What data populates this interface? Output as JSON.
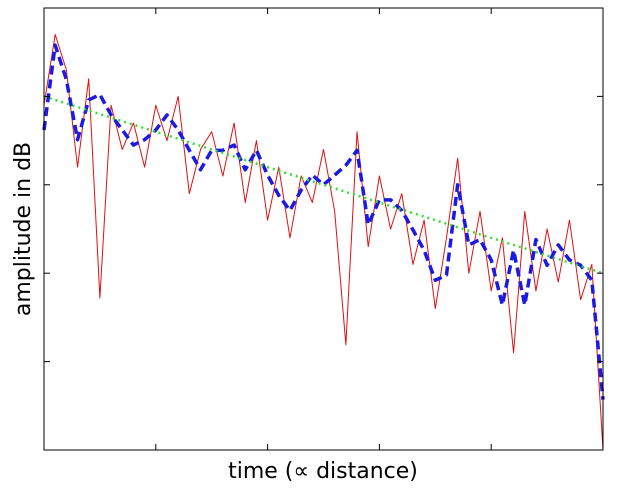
{
  "chart_data": {
    "type": "line",
    "xlabel": "time (∝ distance)",
    "ylabel": "amplitude in dB",
    "x": [
      0,
      0.1,
      0.2,
      0.3,
      0.4,
      0.5,
      0.6,
      0.7,
      0.8,
      0.9,
      1,
      1.1,
      1.2,
      1.3,
      1.4,
      1.5,
      1.6,
      1.7,
      1.8,
      1.9,
      2,
      2.1,
      2.2,
      2.3,
      2.4,
      2.5,
      2.6,
      2.7,
      2.8,
      2.9,
      3,
      3.1,
      3.2,
      3.3,
      3.4,
      3.5,
      3.6,
      3.7,
      3.8,
      3.9,
      4,
      4.1,
      4.2,
      4.3,
      4.4,
      4.5,
      4.6,
      4.7,
      4.8,
      4.9,
      5
    ],
    "series": [
      {
        "color": "#e01010",
        "style": "solid",
        "width": 1,
        "values": [
          3.9,
          4.7,
          4.3,
          3.2,
          4.2,
          1.72,
          3.9,
          3.4,
          3.7,
          3.2,
          3.9,
          3.5,
          4.0,
          2.9,
          3.4,
          3.6,
          3.1,
          3.7,
          2.8,
          3.5,
          2.6,
          3.2,
          2.4,
          3.1,
          2.8,
          3.4,
          2.7,
          1.19,
          3.6,
          2.3,
          3.1,
          2.5,
          2.9,
          2.1,
          2.6,
          1.6,
          2.4,
          3.3,
          2.0,
          2.7,
          1.8,
          2.4,
          1.1,
          2.7,
          1.8,
          2.5,
          1.9,
          2.6,
          1.7,
          2.1,
          0.0
        ]
      },
      {
        "color": "#1a1ae0",
        "style": "dashed",
        "width": 3.5,
        "values": [
          3.62,
          4.58,
          4.19,
          3.51,
          3.96,
          4.02,
          3.79,
          3.62,
          3.45,
          3.51,
          3.62,
          3.79,
          3.62,
          3.39,
          3.17,
          3.39,
          3.39,
          3.45,
          3.17,
          3.39,
          3.11,
          2.88,
          2.71,
          2.94,
          3.11,
          3.0,
          3.11,
          3.22,
          3.39,
          2.55,
          2.83,
          2.83,
          2.71,
          2.49,
          2.26,
          1.92,
          1.98,
          3.0,
          2.32,
          2.38,
          2.15,
          1.64,
          2.26,
          1.64,
          2.38,
          2.09,
          2.32,
          2.15,
          2.09,
          1.92,
          0.57
        ]
      },
      {
        "color": "#33dd33",
        "style": "dotted",
        "width": 2.5,
        "values": [
          4.0,
          3.96,
          3.92,
          3.88,
          3.84,
          3.8,
          3.76,
          3.72,
          3.68,
          3.64,
          3.6,
          3.56,
          3.52,
          3.48,
          3.44,
          3.4,
          3.36,
          3.32,
          3.28,
          3.24,
          3.2,
          3.16,
          3.12,
          3.08,
          3.04,
          3.0,
          2.96,
          2.92,
          2.88,
          2.84,
          2.8,
          2.76,
          2.72,
          2.68,
          2.64,
          2.6,
          2.56,
          2.52,
          2.48,
          2.44,
          2.4,
          2.36,
          2.32,
          2.28,
          2.24,
          2.2,
          2.16,
          2.12,
          2.08,
          2.04,
          2.0
        ]
      }
    ],
    "xlim": [
      0,
      5
    ],
    "xticks": [
      1,
      2,
      3,
      4
    ],
    "ylim": [
      0,
      5
    ],
    "yticks": [
      1,
      2,
      3,
      4
    ]
  }
}
